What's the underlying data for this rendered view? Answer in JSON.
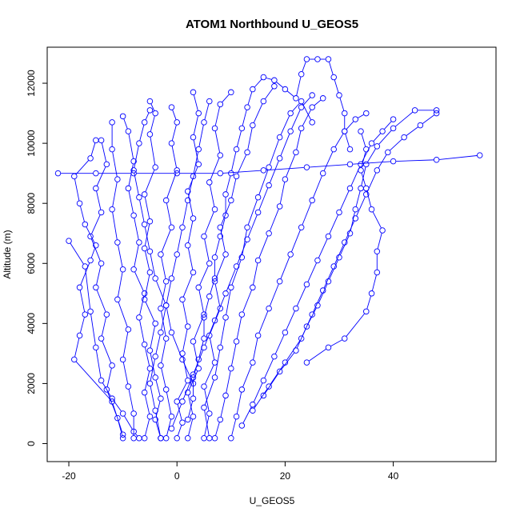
{
  "chart_data": {
    "type": "line",
    "title": "ATOM1 Northbound U_GEOS5",
    "xlabel": "U_GEOS5",
    "ylabel": "Altitude (m)",
    "xlim": [
      -24,
      59
    ],
    "ylim": [
      -600,
      13200
    ],
    "x_ticks": [
      -20,
      0,
      20,
      40
    ],
    "y_ticks": [
      0,
      2000,
      4000,
      6000,
      8000,
      10000,
      12000
    ],
    "grid": false,
    "legend": "none",
    "series_color": "#0000ff",
    "marker": "open-circle",
    "series": [
      {
        "values": [
          [
            -10,
            180
          ],
          [
            -11,
            850
          ],
          [
            -13,
            1800
          ],
          [
            -12,
            2600
          ],
          [
            -14,
            3500
          ],
          [
            -13,
            4300
          ],
          [
            -15,
            5200
          ],
          [
            -14,
            6000
          ],
          [
            -16,
            6900
          ],
          [
            -14,
            7700
          ],
          [
            -15,
            8500
          ],
          [
            -13,
            9300
          ],
          [
            -14,
            10100
          ]
        ]
      },
      {
        "values": [
          [
            -10,
            300
          ],
          [
            -12,
            1400
          ],
          [
            -19,
            2800
          ],
          [
            -18,
            3600
          ],
          [
            -17,
            4300
          ],
          [
            -18,
            5200
          ],
          [
            -16,
            6100
          ],
          [
            -15,
            6600
          ],
          [
            -17,
            7300
          ],
          [
            -18,
            8000
          ],
          [
            -19,
            8900
          ],
          [
            -16,
            9500
          ],
          [
            -15,
            10100
          ]
        ]
      },
      {
        "values": [
          [
            -20,
            6750
          ],
          [
            -17,
            5900
          ],
          [
            -16,
            4400
          ],
          [
            -15,
            3200
          ],
          [
            -14,
            2100
          ],
          [
            -12,
            1500
          ],
          [
            -10,
            1000
          ],
          [
            -8,
            400
          ],
          [
            -7,
            180
          ]
        ]
      },
      {
        "values": [
          [
            -22,
            9000
          ],
          [
            -15,
            9000
          ],
          [
            -8,
            9000
          ],
          [
            0,
            9000
          ],
          [
            8,
            9000
          ],
          [
            16,
            9100
          ],
          [
            24,
            9200
          ],
          [
            32,
            9300
          ],
          [
            40,
            9400
          ],
          [
            48,
            9450
          ],
          [
            56,
            9600
          ]
        ]
      },
      {
        "values": [
          [
            -8,
            180
          ],
          [
            -8,
            1000
          ],
          [
            -9,
            1900
          ],
          [
            -10,
            2800
          ],
          [
            -9,
            3800
          ],
          [
            -11,
            4800
          ],
          [
            -10,
            5800
          ],
          [
            -11,
            6700
          ],
          [
            -12,
            7800
          ],
          [
            -11,
            8800
          ],
          [
            -12,
            9800
          ],
          [
            -12,
            10700
          ]
        ]
      },
      {
        "values": [
          [
            -6,
            180
          ],
          [
            -5,
            900
          ],
          [
            -6,
            1700
          ],
          [
            -5,
            2500
          ],
          [
            -6,
            3300
          ],
          [
            -7,
            4200
          ],
          [
            -6,
            5000
          ],
          [
            -8,
            5800
          ],
          [
            -7,
            6700
          ],
          [
            -8,
            7600
          ],
          [
            -9,
            8500
          ],
          [
            -8,
            9400
          ],
          [
            -9,
            10400
          ],
          [
            -10,
            10900
          ]
        ]
      },
      {
        "values": [
          [
            -3,
            180
          ],
          [
            -4,
            800
          ],
          [
            -3,
            1500
          ],
          [
            -4,
            2200
          ],
          [
            -5,
            3100
          ],
          [
            -4,
            4000
          ],
          [
            -6,
            4800
          ],
          [
            -5,
            5700
          ],
          [
            -6,
            6500
          ],
          [
            -5,
            7400
          ],
          [
            -6,
            8300
          ],
          [
            -4,
            9200
          ],
          [
            -5,
            10300
          ],
          [
            -4,
            11000
          ],
          [
            -5,
            11400
          ]
        ]
      },
      {
        "values": [
          [
            -2,
            180
          ],
          [
            -1,
            900
          ],
          [
            -2,
            1800
          ],
          [
            -3,
            2600
          ],
          [
            -2,
            3500
          ],
          [
            -3,
            4500
          ],
          [
            -2,
            5400
          ],
          [
            -3,
            6300
          ],
          [
            -1,
            7200
          ],
          [
            -2,
            8100
          ],
          [
            0,
            9100
          ],
          [
            -1,
            10000
          ],
          [
            0,
            10700
          ],
          [
            -1,
            11200
          ]
        ]
      },
      {
        "values": [
          [
            0,
            180
          ],
          [
            1,
            700
          ],
          [
            0,
            1400
          ],
          [
            2,
            2100
          ],
          [
            1,
            3000
          ],
          [
            2,
            3900
          ],
          [
            1,
            4800
          ],
          [
            3,
            5700
          ],
          [
            2,
            6600
          ],
          [
            3,
            7500
          ],
          [
            2,
            8400
          ],
          [
            4,
            9300
          ],
          [
            3,
            10200
          ],
          [
            4,
            11000
          ],
          [
            3,
            11700
          ]
        ]
      },
      {
        "values": [
          [
            2,
            180
          ],
          [
            3,
            900
          ],
          [
            2,
            1700
          ],
          [
            4,
            2500
          ],
          [
            3,
            3400
          ],
          [
            5,
            4300
          ],
          [
            4,
            5200
          ],
          [
            6,
            6000
          ],
          [
            5,
            6900
          ],
          [
            7,
            7800
          ],
          [
            6,
            8700
          ],
          [
            8,
            9600
          ],
          [
            7,
            10500
          ],
          [
            8,
            11300
          ],
          [
            10,
            11700
          ]
        ]
      },
      {
        "values": [
          [
            5,
            180
          ],
          [
            6,
            1000
          ],
          [
            5,
            1900
          ],
          [
            7,
            2700
          ],
          [
            6,
            3600
          ],
          [
            8,
            4500
          ],
          [
            7,
            5400
          ],
          [
            9,
            6300
          ],
          [
            8,
            7200
          ],
          [
            10,
            8100
          ],
          [
            11,
            8900
          ],
          [
            13,
            9700
          ],
          [
            14,
            10600
          ],
          [
            16,
            11400
          ],
          [
            18,
            11900
          ]
        ]
      },
      {
        "values": [
          [
            7,
            180
          ],
          [
            8,
            800
          ],
          [
            9,
            1600
          ],
          [
            10,
            2500
          ],
          [
            11,
            3400
          ],
          [
            12,
            4300
          ],
          [
            14,
            5200
          ],
          [
            15,
            6100
          ],
          [
            17,
            7000
          ],
          [
            19,
            7900
          ],
          [
            20,
            8800
          ],
          [
            22,
            9700
          ],
          [
            23,
            10500
          ],
          [
            25,
            11200
          ],
          [
            27,
            11500
          ]
        ]
      },
      {
        "values": [
          [
            10,
            180
          ],
          [
            11,
            900
          ],
          [
            12,
            1800
          ],
          [
            14,
            2700
          ],
          [
            15,
            3600
          ],
          [
            17,
            4500
          ],
          [
            19,
            5400
          ],
          [
            21,
            6300
          ],
          [
            23,
            7200
          ],
          [
            25,
            8100
          ],
          [
            27,
            9000
          ],
          [
            29,
            9800
          ],
          [
            31,
            10400
          ],
          [
            33,
            10800
          ],
          [
            35,
            11000
          ]
        ]
      },
      {
        "values": [
          [
            12,
            600
          ],
          [
            14,
            1300
          ],
          [
            16,
            2100
          ],
          [
            18,
            2900
          ],
          [
            20,
            3700
          ],
          [
            22,
            4500
          ],
          [
            24,
            5300
          ],
          [
            26,
            6100
          ],
          [
            28,
            6900
          ],
          [
            30,
            7700
          ],
          [
            32,
            8500
          ],
          [
            34,
            9300
          ],
          [
            36,
            10000
          ],
          [
            38,
            10400
          ],
          [
            40,
            10800
          ]
        ]
      },
      {
        "values": [
          [
            14,
            1100
          ],
          [
            17,
            1900
          ],
          [
            20,
            2700
          ],
          [
            23,
            3500
          ],
          [
            25,
            4300
          ],
          [
            27,
            5100
          ],
          [
            29,
            5900
          ],
          [
            31,
            6700
          ],
          [
            33,
            7500
          ],
          [
            35,
            8300
          ],
          [
            37,
            9100
          ],
          [
            39,
            9700
          ],
          [
            42,
            10200
          ],
          [
            45,
            10600
          ],
          [
            48,
            11000
          ]
        ]
      },
      {
        "values": [
          [
            16,
            1600
          ],
          [
            19,
            2400
          ],
          [
            22,
            3100
          ],
          [
            24,
            3900
          ],
          [
            26,
            4600
          ],
          [
            28,
            5400
          ],
          [
            30,
            6200
          ],
          [
            32,
            7000
          ],
          [
            33,
            7800
          ],
          [
            34,
            8500
          ],
          [
            35,
            9300
          ],
          [
            37,
            9900
          ],
          [
            40,
            10500
          ],
          [
            44,
            11100
          ],
          [
            48,
            11100
          ]
        ]
      },
      {
        "values": [
          [
            24,
            2700
          ],
          [
            28,
            3200
          ],
          [
            31,
            3500
          ],
          [
            35,
            4400
          ],
          [
            36,
            5000
          ],
          [
            37,
            5700
          ],
          [
            37,
            6400
          ],
          [
            38,
            7100
          ],
          [
            36,
            7800
          ],
          [
            35,
            8500
          ],
          [
            34,
            9100
          ],
          [
            35,
            9800
          ],
          [
            34,
            10400
          ]
        ]
      },
      {
        "values": [
          [
            2,
            800
          ],
          [
            3,
            1500
          ],
          [
            3,
            2200
          ],
          [
            4,
            2800
          ],
          [
            5,
            3500
          ],
          [
            5,
            4200
          ],
          [
            6,
            4900
          ],
          [
            7,
            5500
          ],
          [
            7,
            6200
          ],
          [
            8,
            6900
          ],
          [
            9,
            7600
          ],
          [
            9,
            8300
          ],
          [
            10,
            9000
          ],
          [
            11,
            9800
          ],
          [
            12,
            10500
          ],
          [
            13,
            11200
          ],
          [
            14,
            11800
          ],
          [
            16,
            12200
          ],
          [
            18,
            12100
          ],
          [
            20,
            11800
          ],
          [
            22,
            11500
          ],
          [
            23,
            12300
          ],
          [
            24,
            12800
          ],
          [
            26,
            12800
          ],
          [
            28,
            12800
          ],
          [
            29,
            12200
          ],
          [
            30,
            11600
          ],
          [
            31,
            11000
          ],
          [
            31,
            10400
          ],
          [
            32,
            9800
          ]
        ]
      },
      {
        "values": [
          [
            -3,
            180
          ],
          [
            -4,
            1100
          ],
          [
            -5,
            2000
          ],
          [
            -4,
            2900
          ],
          [
            -3,
            3700
          ],
          [
            -2,
            4600
          ],
          [
            -1,
            5500
          ],
          [
            0,
            6300
          ],
          [
            1,
            7200
          ],
          [
            2,
            8100
          ],
          [
            3,
            8900
          ],
          [
            4,
            9800
          ],
          [
            5,
            10700
          ],
          [
            6,
            11400
          ]
        ]
      },
      {
        "values": [
          [
            6,
            180
          ],
          [
            5,
            1200
          ],
          [
            7,
            2200
          ],
          [
            8,
            3200
          ],
          [
            9,
            4200
          ],
          [
            10,
            5200
          ],
          [
            12,
            6200
          ],
          [
            13,
            7200
          ],
          [
            15,
            8200
          ],
          [
            17,
            9200
          ],
          [
            19,
            10200
          ],
          [
            21,
            11000
          ],
          [
            23,
            11400
          ],
          [
            25,
            10700
          ]
        ]
      },
      {
        "values": [
          [
            -1,
            500
          ],
          [
            1,
            1400
          ],
          [
            3,
            2300
          ],
          [
            5,
            3200
          ],
          [
            7,
            4100
          ],
          [
            9,
            5000
          ],
          [
            11,
            5900
          ],
          [
            13,
            6800
          ],
          [
            15,
            7700
          ],
          [
            17,
            8600
          ],
          [
            19,
            9500
          ],
          [
            21,
            10400
          ],
          [
            23,
            11200
          ],
          [
            25,
            11600
          ]
        ]
      },
      {
        "values": [
          [
            3,
            2000
          ],
          [
            1,
            2800
          ],
          [
            -1,
            3700
          ],
          [
            -2,
            4600
          ],
          [
            -4,
            5500
          ],
          [
            -5,
            6400
          ],
          [
            -6,
            7300
          ],
          [
            -7,
            8200
          ],
          [
            -8,
            9100
          ],
          [
            -7,
            10000
          ],
          [
            -6,
            10700
          ],
          [
            -5,
            11100
          ]
        ]
      }
    ]
  }
}
